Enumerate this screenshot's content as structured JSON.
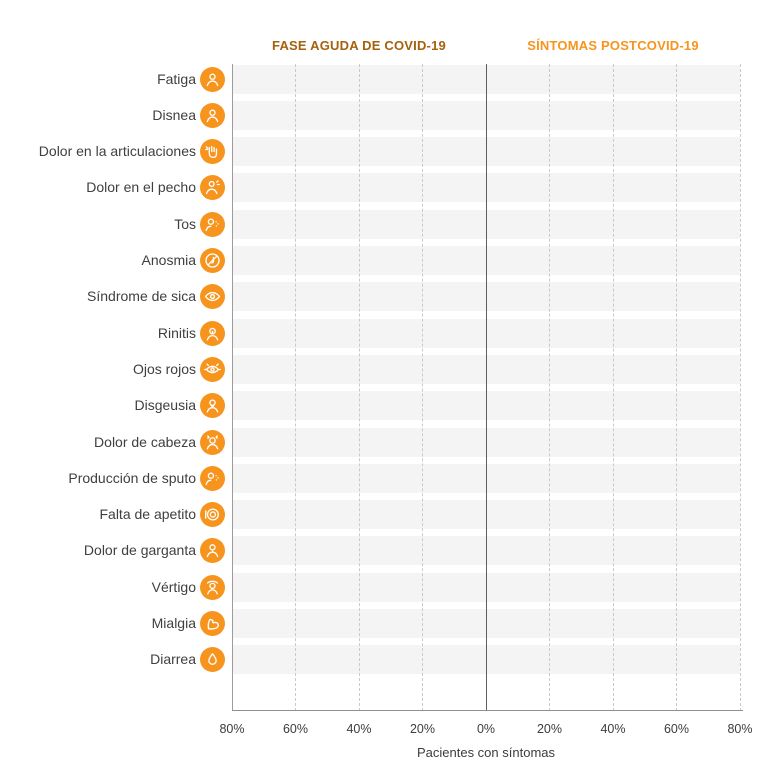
{
  "figure": {
    "headers": [
      {
        "label": "FASE AGUDA DE COVID-19",
        "color": "#A5610E"
      },
      {
        "label": "SÍNTOMAS POSTCOVID-19",
        "color": "#F7941E"
      }
    ]
  },
  "rows": [
    {
      "label": "Fatiga",
      "icon": "fatigue-icon"
    },
    {
      "label": "Disnea",
      "icon": "dyspnea-icon"
    },
    {
      "label": "Dolor en la articulaciones",
      "icon": "joint-pain-icon"
    },
    {
      "label": "Dolor en el pecho",
      "icon": "chest-pain-icon"
    },
    {
      "label": "Tos",
      "icon": "cough-icon"
    },
    {
      "label": "Anosmia",
      "icon": "anosmia-icon"
    },
    {
      "label": "Síndrome de sica",
      "icon": "dry-eye-icon"
    },
    {
      "label": "Rinitis",
      "icon": "rhinitis-icon"
    },
    {
      "label": "Ojos rojos",
      "icon": "red-eyes-icon"
    },
    {
      "label": "Disgeusia",
      "icon": "dysgeusia-icon"
    },
    {
      "label": "Dolor de cabeza",
      "icon": "headache-icon"
    },
    {
      "label": "Producción de sputo",
      "icon": "sputum-icon"
    },
    {
      "label": "Falta de apetito",
      "icon": "appetite-loss-icon"
    },
    {
      "label": "Dolor de garganta",
      "icon": "sore-throat-icon"
    },
    {
      "label": "Vértigo",
      "icon": "vertigo-icon"
    },
    {
      "label": "Mialgia",
      "icon": "myalgia-icon"
    },
    {
      "label": "Diarrea",
      "icon": "diarrhea-icon"
    }
  ],
  "axis": {
    "tick_labels": [
      "80%",
      "60%",
      "40%",
      "20%",
      "0%",
      "20%",
      "40%",
      "60%",
      "80%"
    ],
    "xlabel": "Pacientes con síntomas"
  },
  "chart_data": {
    "type": "bar",
    "orientation": "horizontal-diverging",
    "title": "",
    "column_headers": [
      "FASE AGUDA DE COVID-19",
      "SÍNTOMAS POSTCOVID-19"
    ],
    "categories": [
      "Fatiga",
      "Disnea",
      "Dolor en la articulaciones",
      "Dolor en el pecho",
      "Tos",
      "Anosmia",
      "Síndrome de sica",
      "Rinitis",
      "Ojos rojos",
      "Disgeusia",
      "Dolor de cabeza",
      "Producción de sputo",
      "Falta de apetito",
      "Dolor de garganta",
      "Vértigo",
      "Mialgia",
      "Diarrea"
    ],
    "series": [
      {
        "name": "FASE AGUDA DE COVID-19",
        "side": "left",
        "values": []
      },
      {
        "name": "SÍNTOMAS POSTCOVID-19",
        "side": "right",
        "values": []
      }
    ],
    "bars_visible": false,
    "xlabel": "Pacientes con síntomas",
    "x_ticks": [
      "80%",
      "60%",
      "40%",
      "20%",
      "0%",
      "20%",
      "40%",
      "60%",
      "80%"
    ],
    "xlim_left": [
      80,
      0
    ],
    "xlim_right": [
      0,
      80
    ],
    "grid": "vertical-dashed",
    "legend_position": "top"
  },
  "colors": {
    "icon_orange": "#F7941E",
    "acute_header": "#A5610E",
    "postcovid_header": "#F7941E",
    "row_band": "#F4F4F5",
    "grid_dash": "#C9C9C9",
    "zero_line": "#5E5E5E",
    "edge_line": "#9C9C9C",
    "axis_line": "#8F8F8F",
    "text": "#3F3F3F"
  }
}
